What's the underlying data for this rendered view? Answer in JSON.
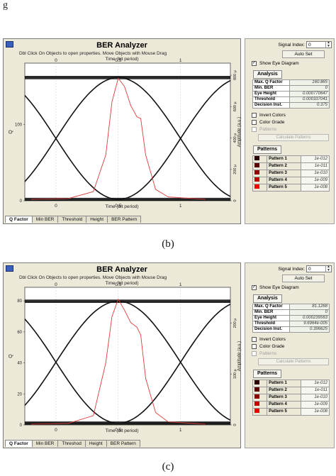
{
  "fragment_text": "g",
  "panels": [
    {
      "caption": "(b)",
      "window": {
        "title": "BER Analyzer",
        "hint": "Dbl Click On Objects to open properties.  Move Objects with Mouse Drag",
        "x_top_title": "Time (bit period)",
        "x_bottom_title": "Time (bit period)",
        "tabs": [
          "Q Factor",
          "Min BER",
          "Threshold",
          "Height",
          "BER Pattern"
        ],
        "active_tab": 0
      },
      "chart_data": {
        "type": "line",
        "title": "",
        "xlabel": "Time (bit period)",
        "ylabel_left": "Q",
        "ylabel_right": "Amplitude (a.u.)",
        "x_ticks": [
          "0",
          "0.5",
          "1"
        ],
        "y_left_ticks": [
          "0",
          "100"
        ],
        "y_right_ticks": [
          "0",
          "200 µ",
          "400 µ",
          "600 µ",
          "800 µ"
        ],
        "xlim": [
          -0.25,
          1.4
        ],
        "y_right_lim": [
          0,
          0.00085
        ],
        "eye": {
          "level_high": 0.000785,
          "level_low": 8.5e-06,
          "crossings": [
            0,
            1
          ]
        },
        "q_curve": {
          "color": "#e23a3a",
          "points": [
            [
              -0.2,
              2
            ],
            [
              0.1,
              3
            ],
            [
              0.3,
              12
            ],
            [
              0.4,
              60
            ],
            [
              0.45,
              130
            ],
            [
              0.5,
              160.865
            ],
            [
              0.55,
              150
            ],
            [
              0.6,
              125
            ],
            [
              0.65,
              110
            ],
            [
              0.68,
              108
            ],
            [
              0.72,
              60
            ],
            [
              0.8,
              15
            ],
            [
              0.9,
              5
            ],
            [
              1.2,
              2
            ]
          ],
          "ylim": [
            0,
            175
          ]
        }
      },
      "side": {
        "signal_index_label": "Signal Index:",
        "signal_index_value": "0",
        "autoset_label": "Auto Set",
        "show_eye_label": "Show Eye Diagram",
        "show_eye_checked": true,
        "analysis_title": "Analysis",
        "metrics": [
          {
            "label": "Max. Q Factor",
            "value": "160.865"
          },
          {
            "label": "Min. BER",
            "value": "0"
          },
          {
            "label": "Eye Height",
            "value": "0.000770647"
          },
          {
            "label": "Threshold",
            "value": "0.000337041"
          },
          {
            "label": "Decision Inst.",
            "value": "0.375"
          }
        ],
        "invert_colors_label": "Invert Colors",
        "color_grade_label": "Color Grade",
        "patterns_check_label": "Patterns",
        "calc_patterns_label": "Calculate Patterns",
        "patterns_title": "Patterns",
        "patterns": [
          {
            "label": "Pattern 1",
            "value": "1e-012",
            "color": "#2b0000"
          },
          {
            "label": "Pattern 2",
            "value": "1e-011",
            "color": "#5a0000"
          },
          {
            "label": "Pattern 3",
            "value": "1e-010",
            "color": "#8c0000"
          },
          {
            "label": "Pattern 4",
            "value": "1e-009",
            "color": "#c00000"
          },
          {
            "label": "Pattern 5",
            "value": "1e-008",
            "color": "#f00000"
          }
        ]
      }
    },
    {
      "caption": "(c)",
      "window": {
        "title": "BER Analyzer",
        "hint": "Dbl Click On Objects to open properties.  Move Objects with Mouse Drag",
        "x_top_title": "Time (bit period)",
        "x_bottom_title": "Time (bit period)",
        "tabs": [
          "Q Factor",
          "Min BER",
          "Threshod",
          "Height",
          "BER Pattern"
        ],
        "active_tab": 0
      },
      "chart_data": {
        "type": "line",
        "title": "",
        "xlabel": "Time (bit period)",
        "ylabel_left": "Q",
        "ylabel_right": "Amplitude (a.u.)",
        "x_ticks": [
          "0",
          "0.5",
          "1"
        ],
        "y_left_ticks": [
          "0",
          "20",
          "40",
          "60",
          "80"
        ],
        "y_right_ticks": [
          "0",
          "100 µ",
          "200 µ"
        ],
        "xlim": [
          -0.25,
          1.4
        ],
        "y_right_lim": [
          0,
          0.000262
        ],
        "eye": {
          "level_high": 0.000243,
          "level_low": 3.5e-06,
          "crossings": [
            0,
            1
          ]
        },
        "q_curve": {
          "color": "#e23a3a",
          "points": [
            [
              -0.2,
              0.5
            ],
            [
              0.1,
              1
            ],
            [
              0.3,
              6
            ],
            [
              0.4,
              40
            ],
            [
              0.45,
              70
            ],
            [
              0.5,
              81.1268
            ],
            [
              0.55,
              74
            ],
            [
              0.6,
              66
            ],
            [
              0.65,
              63
            ],
            [
              0.68,
              58
            ],
            [
              0.72,
              30
            ],
            [
              0.8,
              8
            ],
            [
              0.9,
              2
            ],
            [
              1.2,
              0.5
            ]
          ],
          "ylim": [
            0,
            86
          ]
        }
      },
      "side": {
        "signal_index_label": "Signal Index:",
        "signal_index_value": "0",
        "autoset_label": "Auto Set",
        "show_eye_label": "Show Eye Diagram",
        "show_eye_checked": true,
        "analysis_title": "Analysis",
        "metrics": [
          {
            "label": "Max. Q Factor",
            "value": "81.1268"
          },
          {
            "label": "Min. BER",
            "value": "0"
          },
          {
            "label": "Eye Height",
            "value": "0.000239563"
          },
          {
            "label": "Threshold",
            "value": "9.6964e-005"
          },
          {
            "label": "Decision Inst.",
            "value": "0.396625"
          }
        ],
        "invert_colors_label": "Invert Colors",
        "color_grade_label": "Color Grade",
        "patterns_check_label": "Patterns",
        "calc_patterns_label": "Calculate Patterns",
        "patterns_title": "Patterns",
        "patterns": [
          {
            "label": "Pattern 1",
            "value": "1e-012",
            "color": "#2b0000"
          },
          {
            "label": "Pattern 2",
            "value": "1e-011",
            "color": "#5a0000"
          },
          {
            "label": "Pattern 3",
            "value": "1e-010",
            "color": "#8c0000"
          },
          {
            "label": "Pattern 4",
            "value": "1e-009",
            "color": "#c00000"
          },
          {
            "label": "Pattern 5",
            "value": "1e-008",
            "color": "#f00000"
          }
        ]
      }
    }
  ]
}
